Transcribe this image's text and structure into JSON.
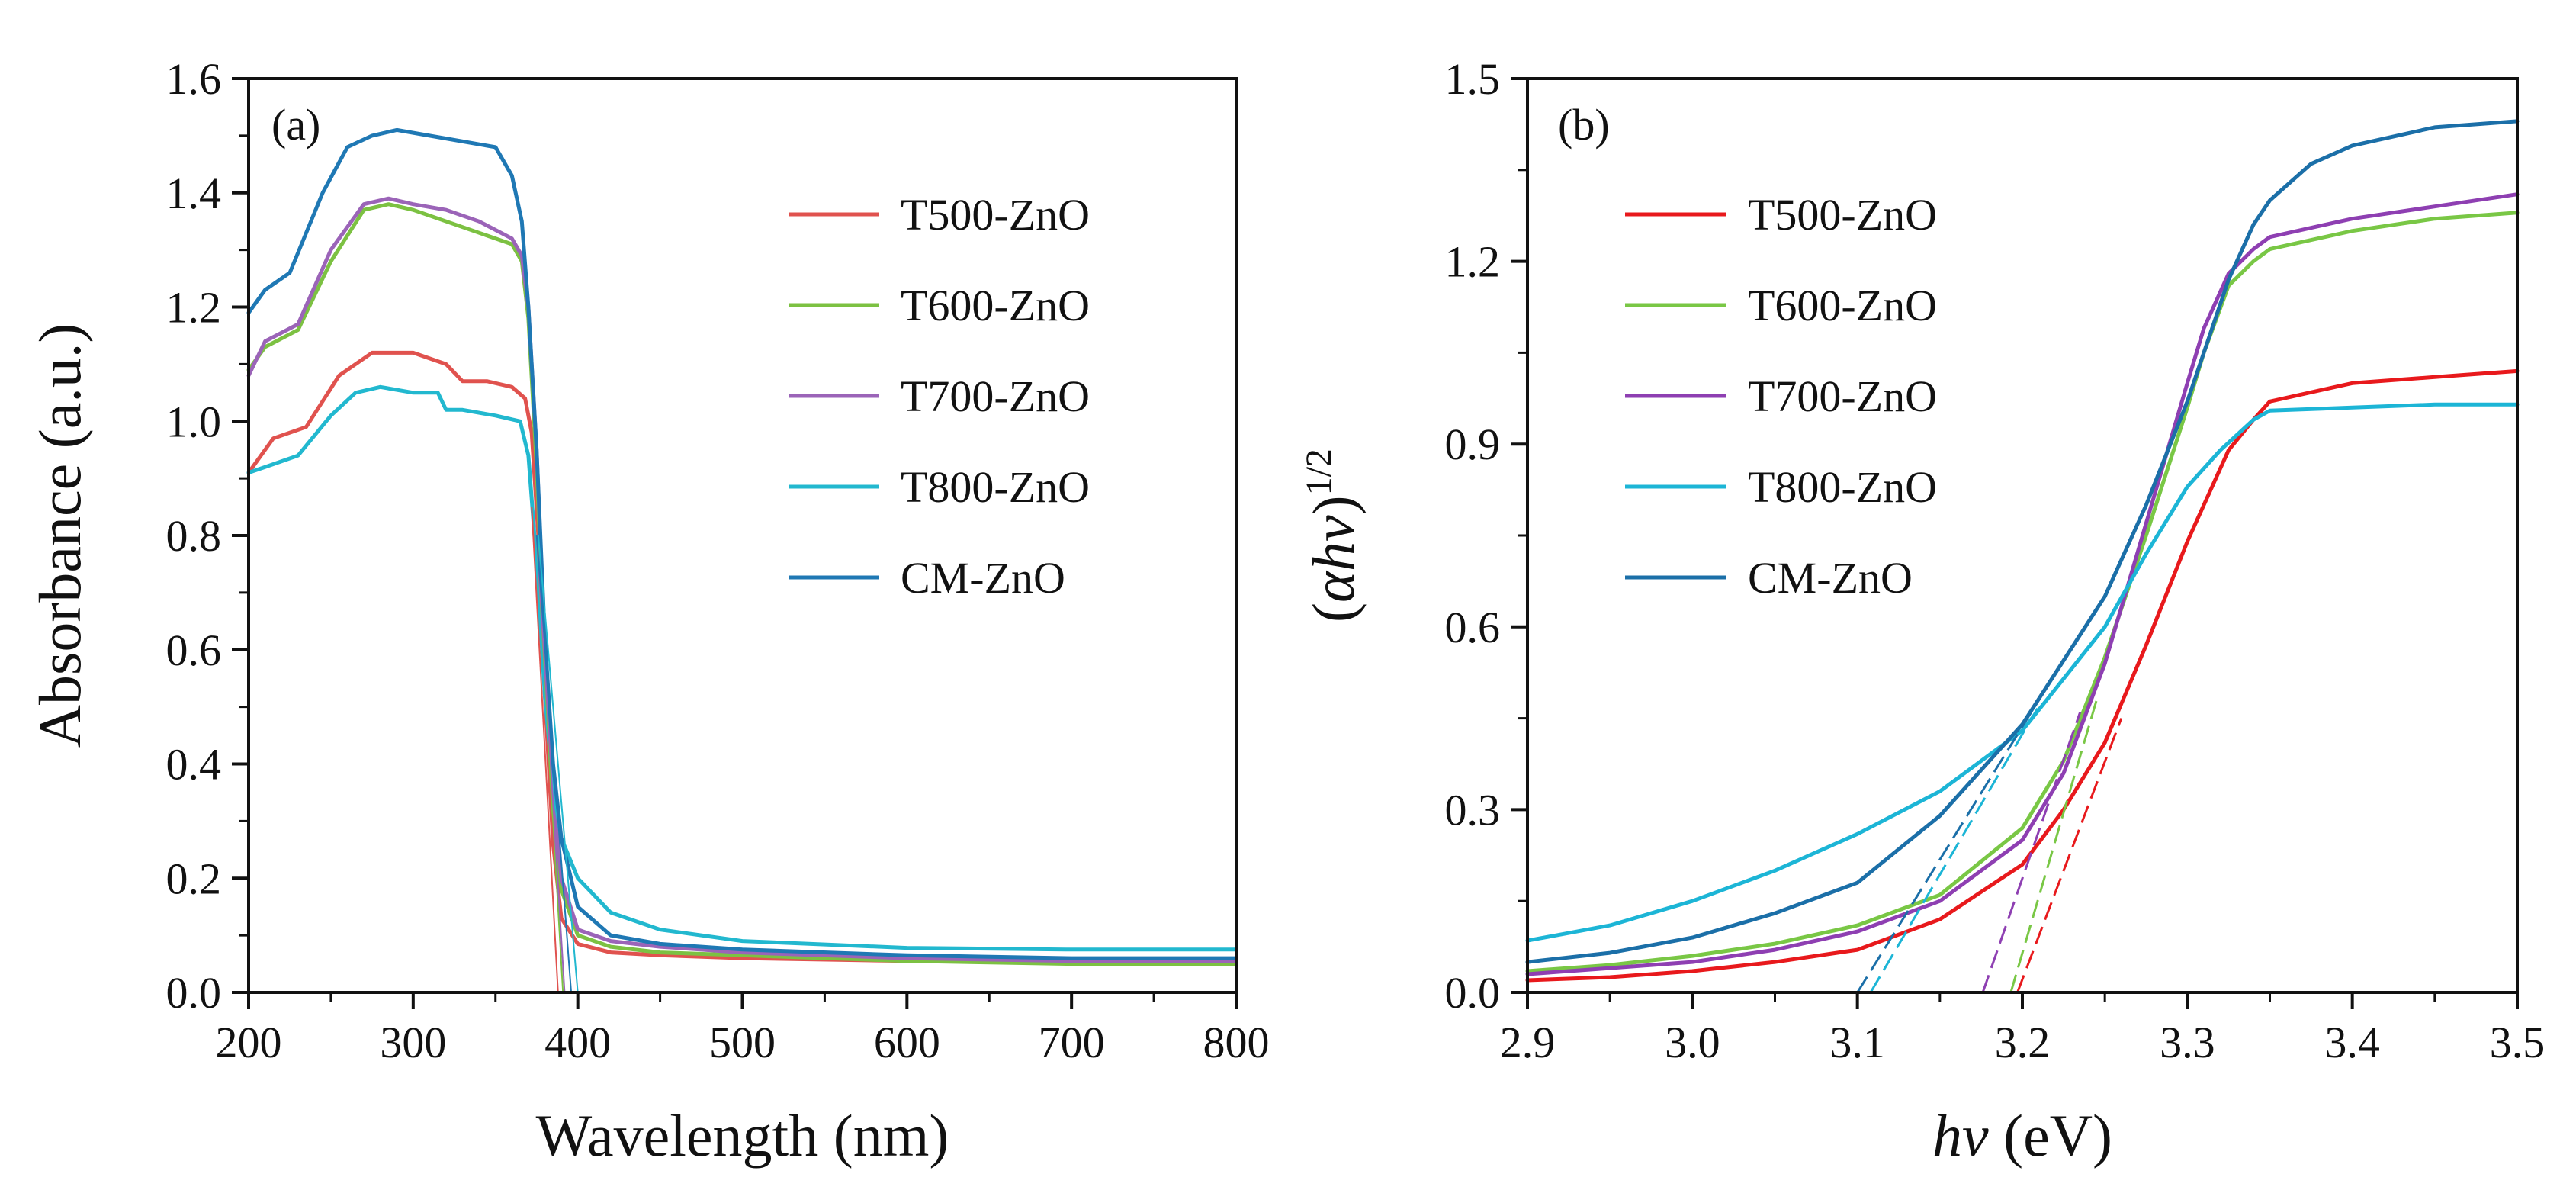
{
  "figure": {
    "background": "#ffffff"
  },
  "chart_data": [
    {
      "id": "a",
      "type": "line",
      "panel_label": "(a)",
      "xlabel": "Wavelength (nm)",
      "ylabel": "Absorbance (a.u.)",
      "xlim": [
        200,
        800
      ],
      "ylim": [
        0.0,
        1.6
      ],
      "xticks": [
        200,
        300,
        400,
        500,
        600,
        700,
        800
      ],
      "xtick_labels": [
        "200",
        "300",
        "400",
        "500",
        "600",
        "700",
        "800"
      ],
      "yticks": [
        0.0,
        0.2,
        0.4,
        0.6,
        0.8,
        1.0,
        1.2,
        1.4,
        1.6
      ],
      "ytick_labels": [
        "0.0",
        "0.2",
        "0.4",
        "0.6",
        "0.8",
        "1.0",
        "1.2",
        "1.4",
        "1.6"
      ],
      "grid": false,
      "legend_position": "upper-right",
      "series": [
        {
          "name": "T500-ZnO",
          "color": "#e0524e",
          "x": [
            200,
            215,
            235,
            255,
            275,
            300,
            320,
            330,
            345,
            360,
            368,
            372,
            376,
            380,
            385,
            390,
            400,
            420,
            450,
            500,
            600,
            700,
            800
          ],
          "y": [
            0.91,
            0.97,
            0.99,
            1.08,
            1.12,
            1.12,
            1.1,
            1.07,
            1.07,
            1.06,
            1.04,
            0.98,
            0.8,
            0.52,
            0.26,
            0.13,
            0.085,
            0.07,
            0.065,
            0.06,
            0.055,
            0.052,
            0.05
          ]
        },
        {
          "name": "T600-ZnO",
          "color": "#7cc142",
          "x": [
            200,
            210,
            230,
            250,
            270,
            285,
            300,
            320,
            340,
            360,
            366,
            370,
            375,
            380,
            385,
            390,
            400,
            420,
            450,
            500,
            600,
            700,
            800
          ],
          "y": [
            1.09,
            1.13,
            1.16,
            1.28,
            1.37,
            1.38,
            1.37,
            1.35,
            1.33,
            1.31,
            1.28,
            1.18,
            0.92,
            0.58,
            0.32,
            0.18,
            0.1,
            0.08,
            0.07,
            0.065,
            0.055,
            0.05,
            0.05
          ]
        },
        {
          "name": "T700-ZnO",
          "color": "#9b64b8",
          "x": [
            200,
            210,
            230,
            250,
            270,
            285,
            300,
            320,
            340,
            360,
            366,
            370,
            375,
            380,
            385,
            390,
            400,
            420,
            450,
            500,
            600,
            700,
            800
          ],
          "y": [
            1.08,
            1.14,
            1.17,
            1.3,
            1.38,
            1.39,
            1.38,
            1.37,
            1.35,
            1.32,
            1.29,
            1.2,
            0.95,
            0.6,
            0.34,
            0.2,
            0.11,
            0.09,
            0.08,
            0.07,
            0.06,
            0.055,
            0.055
          ]
        },
        {
          "name": "T800-ZnO",
          "color": "#22b8cf",
          "x": [
            200,
            210,
            230,
            250,
            265,
            280,
            300,
            315,
            320,
            330,
            350,
            365,
            370,
            375,
            380,
            385,
            390,
            400,
            420,
            450,
            500,
            600,
            700,
            800
          ],
          "y": [
            0.91,
            0.92,
            0.94,
            1.01,
            1.05,
            1.06,
            1.05,
            1.05,
            1.02,
            1.02,
            1.01,
            1.0,
            0.94,
            0.75,
            0.52,
            0.36,
            0.27,
            0.2,
            0.14,
            0.11,
            0.09,
            0.078,
            0.075,
            0.075
          ]
        },
        {
          "name": "CM-ZnO",
          "color": "#1f78b4",
          "x": [
            200,
            210,
            225,
            245,
            260,
            275,
            290,
            310,
            330,
            350,
            360,
            366,
            370,
            375,
            380,
            385,
            390,
            400,
            420,
            450,
            500,
            600,
            700,
            800
          ],
          "y": [
            1.19,
            1.23,
            1.26,
            1.4,
            1.48,
            1.5,
            1.51,
            1.5,
            1.49,
            1.48,
            1.43,
            1.35,
            1.2,
            0.95,
            0.62,
            0.4,
            0.27,
            0.15,
            0.1,
            0.085,
            0.075,
            0.065,
            0.06,
            0.06
          ]
        }
      ],
      "extrapolations": [
        {
          "series": "T500-ZnO",
          "color": "#e0524e",
          "x1": 372,
          "y1": 0.85,
          "x2": 388,
          "y2": 0.0
        },
        {
          "series": "T600-ZnO",
          "color": "#7cc142",
          "x1": 375,
          "y1": 0.8,
          "x2": 391,
          "y2": 0.0
        },
        {
          "series": "T700-ZnO",
          "color": "#9b64b8",
          "x1": 375,
          "y1": 0.8,
          "x2": 392,
          "y2": 0.0
        },
        {
          "series": "T800-ZnO",
          "color": "#22b8cf",
          "x1": 376,
          "y1": 0.8,
          "x2": 400,
          "y2": 0.0
        },
        {
          "series": "CM-ZnO",
          "color": "#1f78b4",
          "x1": 375,
          "y1": 0.8,
          "x2": 396,
          "y2": 0.0
        }
      ]
    },
    {
      "id": "b",
      "type": "line",
      "panel_label": "(b)",
      "xlabel_italic": "hv",
      "xlabel_rest": " (eV)",
      "ylabel_italic": "αhv",
      "ylabel_open": "(",
      "ylabel_close": ")",
      "ylabel_superscript": "1/2",
      "xlim": [
        2.9,
        3.5
      ],
      "ylim": [
        0.0,
        1.5
      ],
      "xticks": [
        2.9,
        3.0,
        3.1,
        3.2,
        3.3,
        3.4,
        3.5
      ],
      "xtick_labels": [
        "2.9",
        "3.0",
        "3.1",
        "3.2",
        "3.3",
        "3.4",
        "3.5"
      ],
      "yticks": [
        0.0,
        0.3,
        0.6,
        0.9,
        1.2,
        1.5
      ],
      "ytick_labels": [
        "0.0",
        "0.3",
        "0.6",
        "0.9",
        "1.2",
        "1.5"
      ],
      "grid": false,
      "legend_position": "upper-left",
      "series": [
        {
          "name": "T500-ZnO",
          "color": "#e8191c",
          "x": [
            2.9,
            2.95,
            3.0,
            3.05,
            3.1,
            3.15,
            3.2,
            3.225,
            3.25,
            3.275,
            3.3,
            3.325,
            3.34,
            3.35,
            3.4,
            3.45,
            3.5
          ],
          "y": [
            0.02,
            0.025,
            0.035,
            0.05,
            0.07,
            0.12,
            0.21,
            0.3,
            0.41,
            0.57,
            0.74,
            0.89,
            0.94,
            0.97,
            1.0,
            1.01,
            1.02
          ]
        },
        {
          "name": "T600-ZnO",
          "color": "#79c745",
          "x": [
            2.9,
            2.95,
            3.0,
            3.05,
            3.1,
            3.15,
            3.2,
            3.225,
            3.25,
            3.275,
            3.3,
            3.31,
            3.325,
            3.34,
            3.35,
            3.4,
            3.45,
            3.5
          ],
          "y": [
            0.035,
            0.045,
            0.06,
            0.08,
            0.11,
            0.16,
            0.27,
            0.38,
            0.55,
            0.75,
            0.96,
            1.05,
            1.16,
            1.2,
            1.22,
            1.25,
            1.27,
            1.28
          ]
        },
        {
          "name": "T700-ZnO",
          "color": "#8e3fb2",
          "x": [
            2.9,
            2.95,
            3.0,
            3.05,
            3.1,
            3.15,
            3.2,
            3.225,
            3.25,
            3.275,
            3.3,
            3.31,
            3.325,
            3.34,
            3.35,
            3.4,
            3.45,
            3.5
          ],
          "y": [
            0.03,
            0.04,
            0.05,
            0.07,
            0.1,
            0.15,
            0.25,
            0.36,
            0.54,
            0.77,
            1.0,
            1.09,
            1.18,
            1.22,
            1.24,
            1.27,
            1.29,
            1.31
          ]
        },
        {
          "name": "T800-ZnO",
          "color": "#1cb5d6",
          "x": [
            2.9,
            2.95,
            3.0,
            3.05,
            3.1,
            3.15,
            3.2,
            3.25,
            3.275,
            3.3,
            3.32,
            3.34,
            3.35,
            3.4,
            3.45,
            3.5
          ],
          "y": [
            0.085,
            0.11,
            0.15,
            0.2,
            0.26,
            0.33,
            0.43,
            0.6,
            0.72,
            0.83,
            0.89,
            0.94,
            0.955,
            0.96,
            0.965,
            0.965
          ]
        },
        {
          "name": "CM-ZnO",
          "color": "#1b6fa8",
          "x": [
            2.9,
            2.95,
            3.0,
            3.05,
            3.1,
            3.15,
            3.2,
            3.25,
            3.275,
            3.3,
            3.325,
            3.34,
            3.35,
            3.375,
            3.4,
            3.45,
            3.5
          ],
          "y": [
            0.05,
            0.065,
            0.09,
            0.13,
            0.18,
            0.29,
            0.44,
            0.65,
            0.8,
            0.97,
            1.17,
            1.26,
            1.3,
            1.36,
            1.39,
            1.42,
            1.43
          ]
        }
      ],
      "extrapolations": [
        {
          "series": "T500-ZnO",
          "color": "#e8191c",
          "x1": 3.197,
          "y1": 0.0,
          "x2": 3.26,
          "y2": 0.45
        },
        {
          "series": "T600-ZnO",
          "color": "#79c745",
          "x1": 3.193,
          "y1": 0.0,
          "x2": 3.245,
          "y2": 0.48
        },
        {
          "series": "T700-ZnO",
          "color": "#8e3fb2",
          "x1": 3.176,
          "y1": 0.0,
          "x2": 3.235,
          "y2": 0.46
        },
        {
          "series": "T800-ZnO",
          "color": "#1cb5d6",
          "x1": 3.108,
          "y1": 0.0,
          "x2": 3.21,
          "y2": 0.47
        },
        {
          "series": "CM-ZnO",
          "color": "#1b6fa8",
          "x1": 3.1,
          "y1": 0.0,
          "x2": 3.21,
          "y2": 0.48
        }
      ]
    }
  ]
}
